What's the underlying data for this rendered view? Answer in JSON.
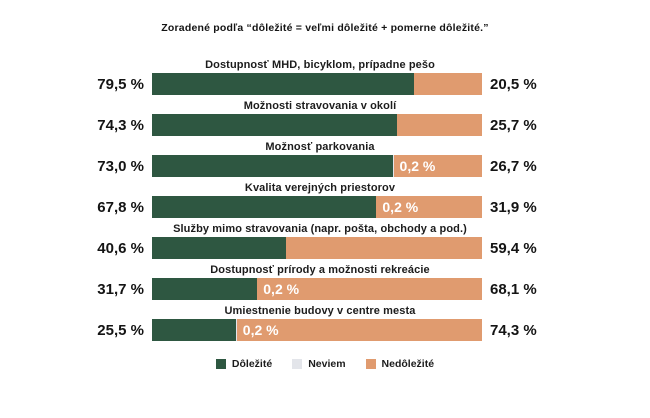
{
  "title": "Zoradené podľa “dôležité = veľmi dôležité + pomerne dôležité.”",
  "colors": {
    "important": "#2e5741",
    "unknown": "#e3e5ea",
    "unimportant": "#e09b6f",
    "text": "#141414"
  },
  "legend": {
    "items": [
      {
        "label": "Dôležité",
        "color": "#2e5741"
      },
      {
        "label": "Neviem",
        "color": "#e3e5ea"
      },
      {
        "label": "Nedôležité",
        "color": "#e09b6f"
      }
    ]
  },
  "rows": [
    {
      "category": "Dostupnosť MHD, bicyklom, prípadne pešo",
      "left": "79,5 %",
      "mid": "",
      "right": "20,5 %",
      "v_important": 79.5,
      "v_unknown": 0,
      "v_unimportant": 20.5
    },
    {
      "category": "Možnosti stravovania v okolí",
      "left": "74,3 %",
      "mid": "",
      "right": "25,7 %",
      "v_important": 74.3,
      "v_unknown": 0,
      "v_unimportant": 25.7
    },
    {
      "category": "Možnosť parkovania",
      "left": "73,0 %",
      "mid": "0,2 %",
      "right": "26,7 %",
      "v_important": 73.0,
      "v_unknown": 0.2,
      "v_unimportant": 26.7
    },
    {
      "category": "Kvalita verejných priestorov",
      "left": "67,8 %",
      "mid": "0,2 %",
      "right": "31,9 %",
      "v_important": 67.8,
      "v_unknown": 0.2,
      "v_unimportant": 31.9
    },
    {
      "category": "Služby mimo stravovania (napr. pošta, obchody a pod.)",
      "left": "40,6 %",
      "mid": "",
      "right": "59,4 %",
      "v_important": 40.6,
      "v_unknown": 0,
      "v_unimportant": 59.4
    },
    {
      "category": "Dostupnosť prírody a možnosti rekreácie",
      "left": "31,7 %",
      "mid": "0,2 %",
      "right": "68,1 %",
      "v_important": 31.7,
      "v_unknown": 0.2,
      "v_unimportant": 68.1
    },
    {
      "category": "Umiestnenie budovy v centre mesta",
      "left": "25,5 %",
      "mid": "0,2 %",
      "right": "74,3 %",
      "v_important": 25.5,
      "v_unknown": 0.2,
      "v_unimportant": 74.3
    }
  ],
  "chart_data": {
    "type": "bar",
    "orientation": "horizontal",
    "stacked": true,
    "title": "Zoradené podľa “dôležité = veľmi dôležité + pomerne dôležité.”",
    "unit": "%",
    "xlim": [
      0,
      100
    ],
    "grid": false,
    "legend_position": "bottom",
    "legend": [
      "Dôležité",
      "Neviem",
      "Nedôležité"
    ],
    "colors": [
      "#2e5741",
      "#e3e5ea",
      "#e09b6f"
    ],
    "categories": [
      "Dostupnosť MHD, bicyklom, prípadne pešo",
      "Možnosti stravovania v okolí",
      "Možnosť parkovania",
      "Kvalita verejných priestorov",
      "Služby mimo stravovania (napr. pošta, obchody a pod.)",
      "Dostupnosť prírody a možnosti rekreácie",
      "Umiestnenie budovy v centre mesta"
    ],
    "series": [
      {
        "name": "Dôležité",
        "values": [
          79.5,
          74.3,
          73.0,
          67.8,
          40.6,
          31.7,
          25.5
        ]
      },
      {
        "name": "Neviem",
        "values": [
          0,
          0,
          0.2,
          0.2,
          0,
          0.2,
          0.2
        ]
      },
      {
        "name": "Nedôležité",
        "values": [
          20.5,
          25.7,
          26.7,
          31.9,
          59.4,
          68.1,
          74.3
        ]
      }
    ]
  }
}
